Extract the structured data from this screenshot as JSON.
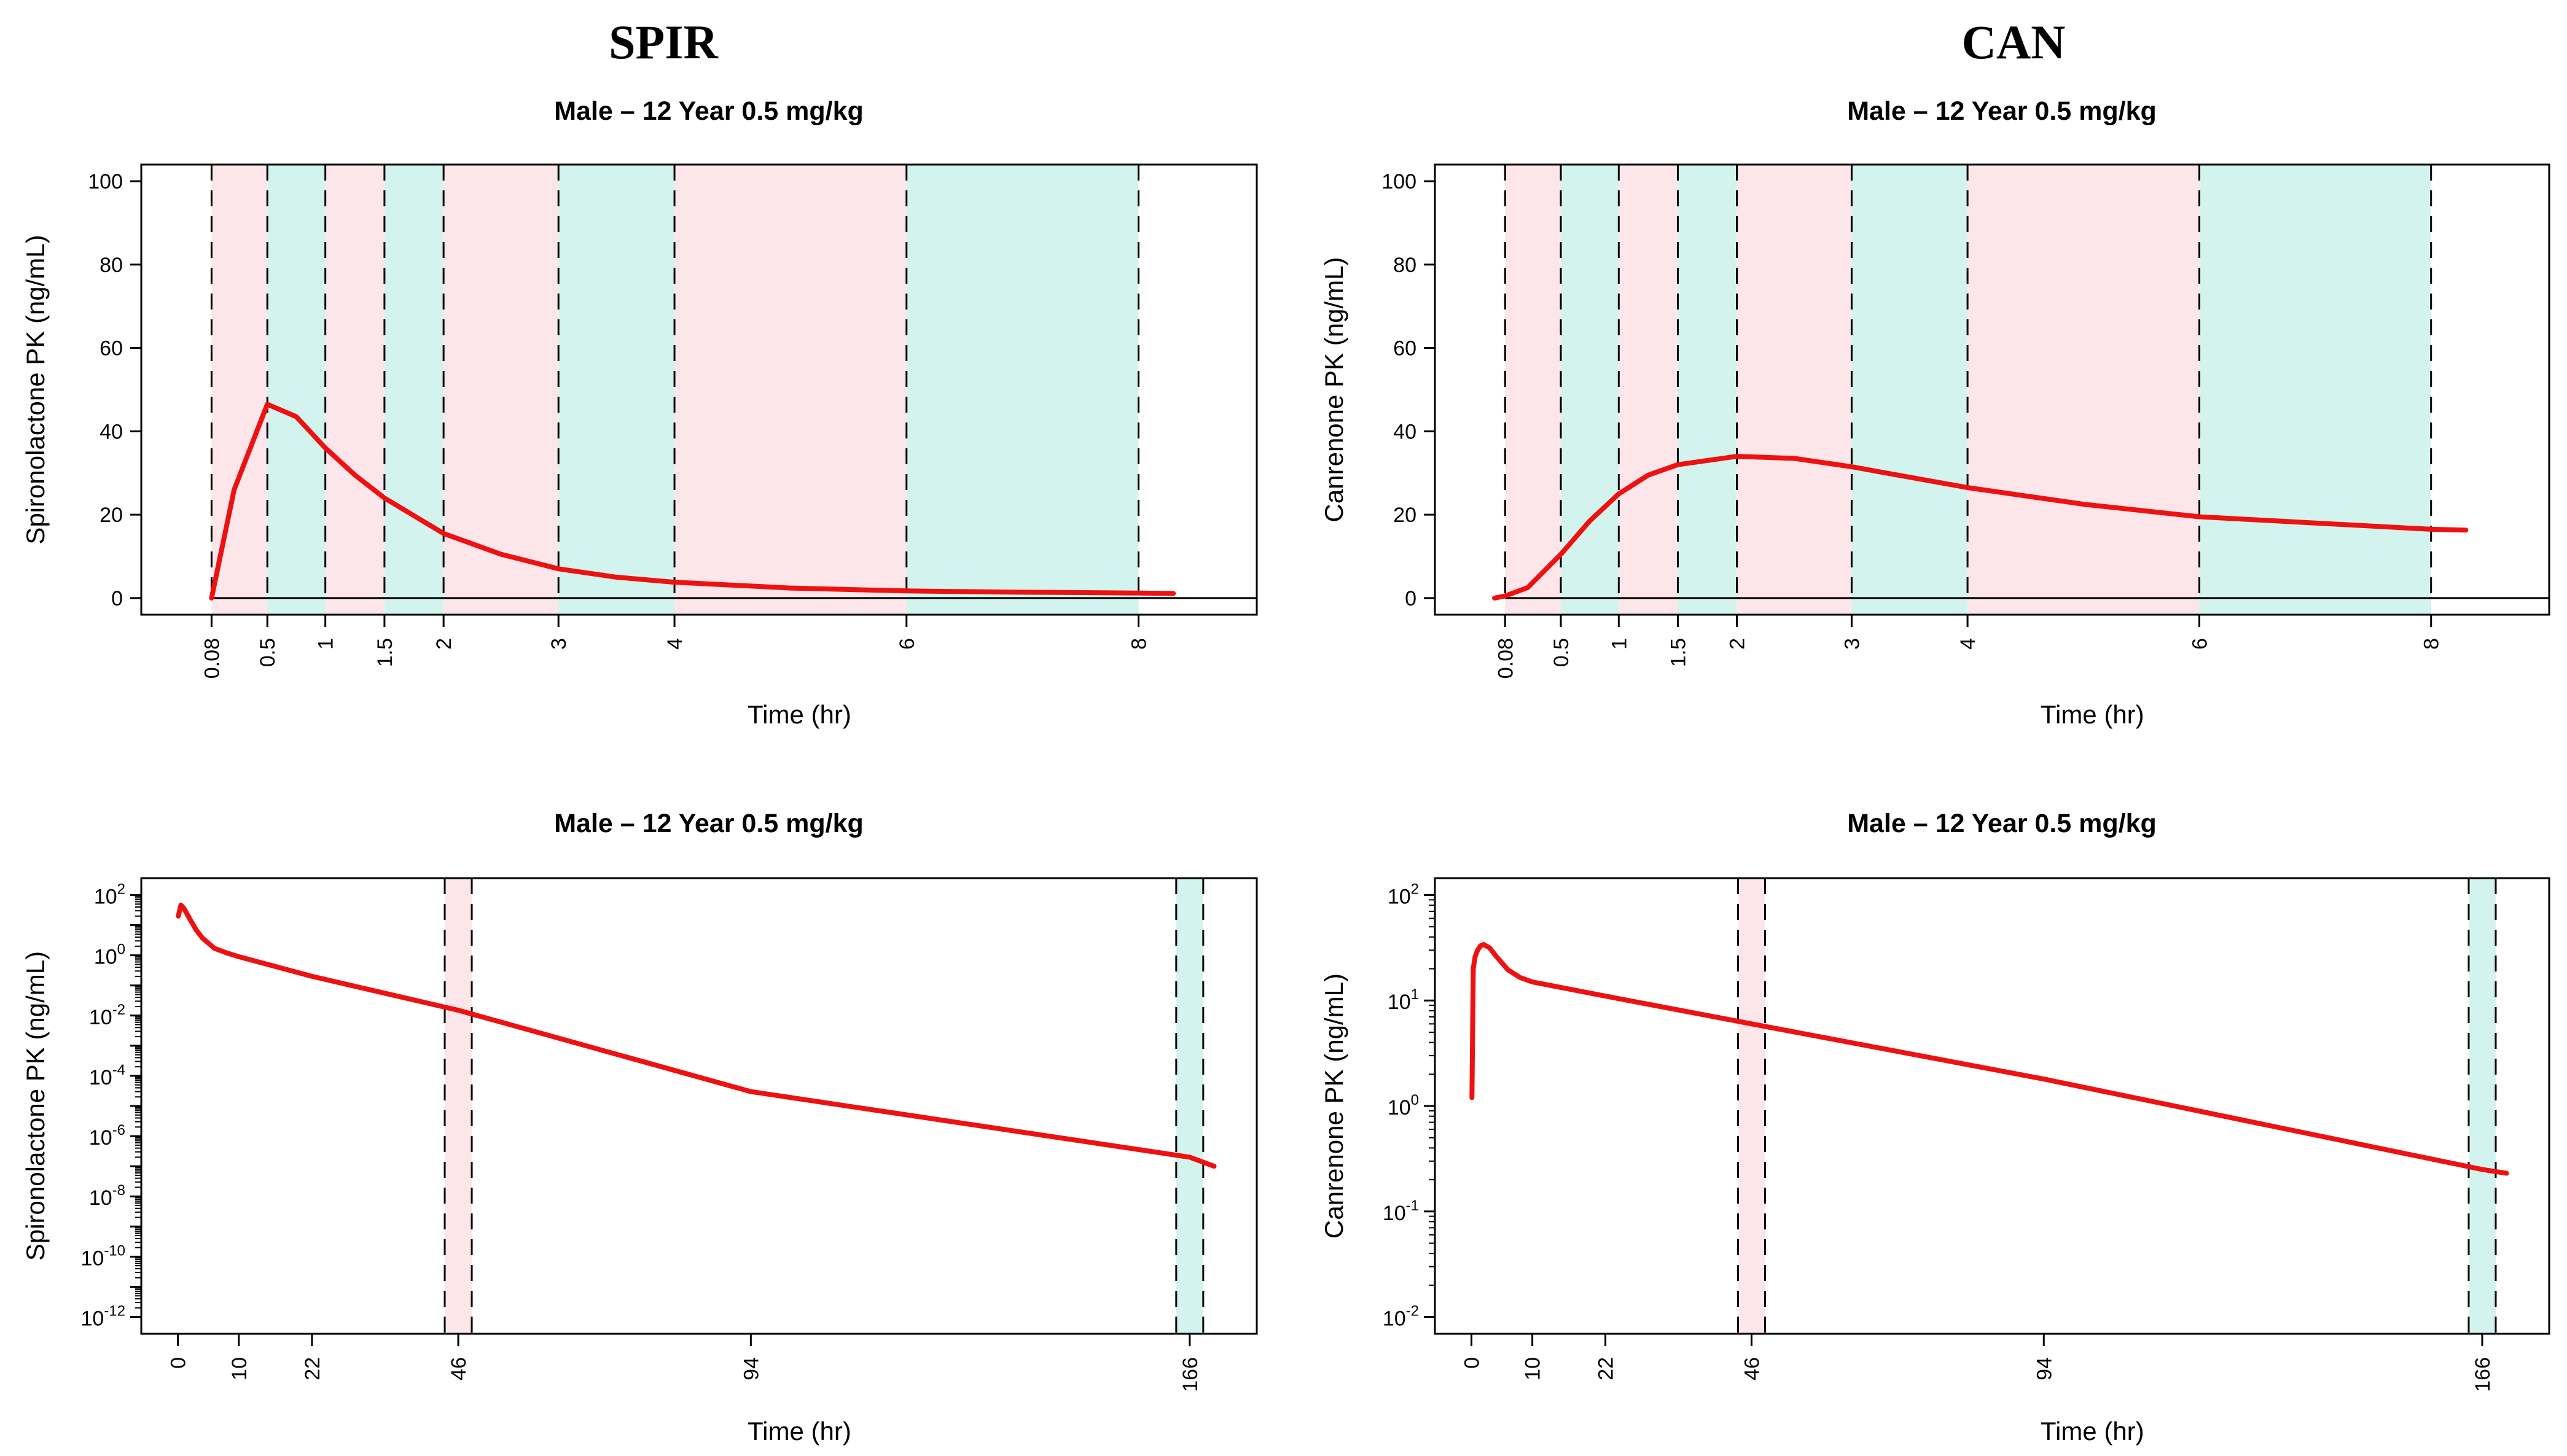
{
  "section_titles": [
    "SPIR",
    "CAN"
  ],
  "colors": {
    "pink_band": "#fde6ea",
    "teal_band": "#d3f4ee",
    "curve": "#ee1111",
    "axis": "#000000",
    "dash": "#000000"
  },
  "chart_data": [
    {
      "id": "spir-linear",
      "type": "line",
      "title": "Male – 12 Year 0.5 mg/kg",
      "xlabel": "Time (hr)",
      "ylabel": "Spironolactone PK (ng/mL)",
      "yscale": "linear",
      "xlim": [
        0.08,
        8
      ],
      "ylim": [
        0,
        100
      ],
      "yticks": [
        0,
        20,
        40,
        60,
        80,
        100
      ],
      "xtick_labels": [
        "0.08",
        "0.5",
        "1",
        "1.5",
        "2",
        "3",
        "4",
        "6",
        "8"
      ],
      "vertical_dashed_lines": [
        "0.08",
        "0.5",
        "1",
        "1.5",
        "2",
        "3",
        "4",
        "6",
        "8"
      ],
      "bands": [
        "pink",
        "teal",
        "pink",
        "teal",
        "pink",
        "teal",
        "pink",
        "teal"
      ],
      "series": [
        {
          "x": [
            0.08,
            0.25,
            0.5,
            0.75,
            1,
            1.25,
            1.5,
            2,
            2.5,
            3,
            3.5,
            4,
            5,
            6,
            7,
            8,
            8.3
          ],
          "y": [
            0,
            26,
            46.5,
            43.5,
            36,
            29.5,
            24,
            15.5,
            10.5,
            7,
            5,
            3.8,
            2.4,
            1.7,
            1.4,
            1.2,
            1.1
          ]
        }
      ]
    },
    {
      "id": "can-linear",
      "type": "line",
      "title": "Male – 12 Year 0.5 mg/kg",
      "xlabel": "Time (hr)",
      "ylabel": "Canrenone PK (ng/mL)",
      "yscale": "linear",
      "xlim": [
        0.08,
        8
      ],
      "ylim": [
        0,
        100
      ],
      "yticks": [
        0,
        20,
        40,
        60,
        80,
        100
      ],
      "xtick_labels": [
        "0.08",
        "0.5",
        "1",
        "1.5",
        "2",
        "3",
        "4",
        "6",
        "8"
      ],
      "vertical_dashed_lines": [
        "0.08",
        "0.5",
        "1",
        "1.5",
        "2",
        "3",
        "4",
        "6",
        "8"
      ],
      "bands": [
        "pink",
        "teal",
        "pink",
        "teal",
        "pink",
        "teal",
        "pink",
        "teal"
      ],
      "series": [
        {
          "x": [
            0,
            0.08,
            0.25,
            0.5,
            0.75,
            1,
            1.25,
            1.5,
            2,
            2.5,
            3,
            4,
            5,
            6,
            7,
            8,
            8.3
          ],
          "y": [
            0,
            0.5,
            2.5,
            10.5,
            18.5,
            25,
            29.5,
            32,
            34,
            33.5,
            31.5,
            26.5,
            22.5,
            19.5,
            18,
            16.5,
            16.3
          ]
        }
      ]
    },
    {
      "id": "spir-log",
      "type": "line",
      "title": "Male – 12 Year 0.5 mg/kg",
      "xlabel": "Time (hr)",
      "ylabel": "Spironolactone PK (ng/mL)",
      "yscale": "log",
      "xlim": [
        0,
        168
      ],
      "ylim": [
        1e-12,
        100
      ],
      "ytick_exponents": [
        2,
        0,
        -2,
        -4,
        -6,
        -8,
        -10,
        -12
      ],
      "xtick_labels": [
        "0",
        "10",
        "22",
        "46",
        "94",
        "166"
      ],
      "vertical_dashed_lines": [
        "46",
        "166"
      ],
      "bands": [
        "pink",
        "teal"
      ],
      "series": [
        {
          "x": [
            0.08,
            0.5,
            1,
            2,
            3,
            4,
            6,
            8,
            10,
            22,
            46,
            94,
            166,
            170
          ],
          "y": [
            20,
            46.5,
            36,
            15.5,
            7,
            3.8,
            1.7,
            1.2,
            0.9,
            0.2,
            0.015,
            3e-05,
            2e-07,
            1e-07
          ]
        }
      ]
    },
    {
      "id": "can-log",
      "type": "line",
      "title": "Male – 12 Year 0.5 mg/kg",
      "xlabel": "Time (hr)",
      "ylabel": "Canrenone PK (ng/mL)",
      "yscale": "log",
      "xlim": [
        0,
        168
      ],
      "ylim": [
        0.01,
        100
      ],
      "ytick_exponents": [
        2,
        1,
        0,
        -1,
        -2
      ],
      "xtick_labels": [
        "0",
        "10",
        "22",
        "46",
        "94",
        "166"
      ],
      "vertical_dashed_lines": [
        "46",
        "166"
      ],
      "bands": [
        "pink",
        "teal"
      ],
      "series": [
        {
          "x": [
            0.08,
            0.3,
            0.6,
            1,
            1.5,
            2,
            3,
            4,
            6,
            8,
            10,
            22,
            46,
            94,
            166,
            170
          ],
          "y": [
            1.2,
            20,
            26,
            30,
            33,
            34,
            31.5,
            26.5,
            19.5,
            16.5,
            15,
            11,
            6,
            1.8,
            0.25,
            0.23
          ]
        }
      ]
    }
  ]
}
